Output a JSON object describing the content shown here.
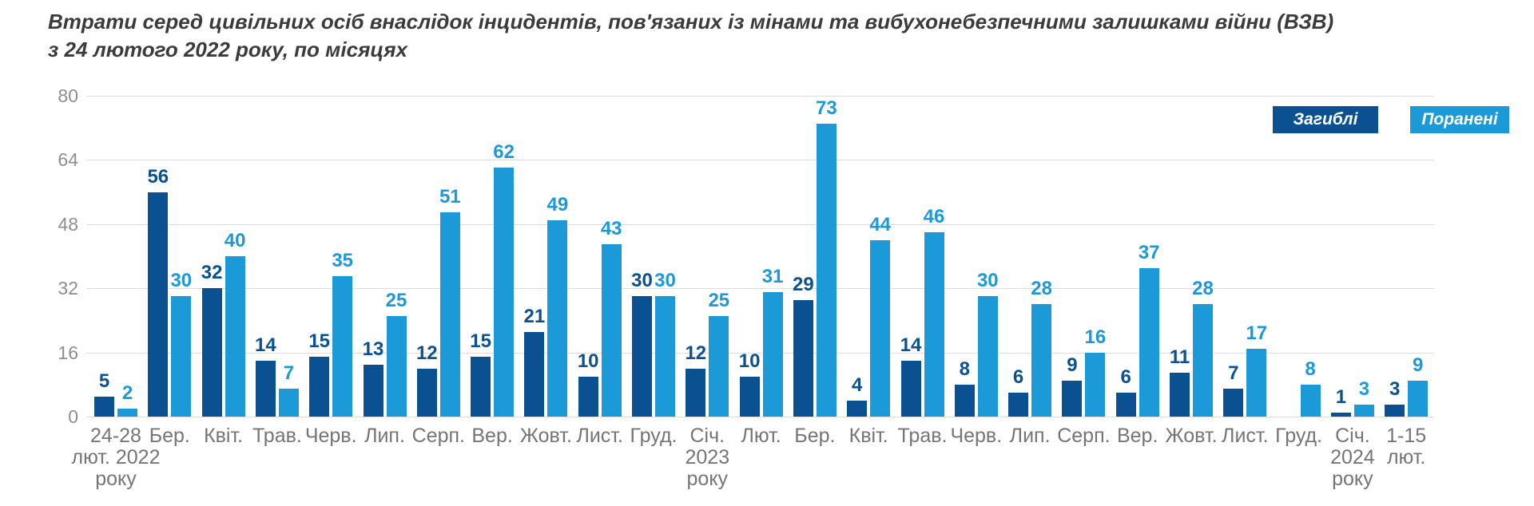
{
  "title": {
    "line1": "Втрати серед цивільних осіб внаслідок інцидентів, пов'язаних із мінами та вибухонебезпечними залишками війни (ВЗВ)",
    "line2": "з 24 лютого 2022 року, по місяцях"
  },
  "legend": {
    "killed": "Загиблі",
    "wounded": "Поранені"
  },
  "colors": {
    "killed": "#0b5191",
    "wounded": "#1b9ad7",
    "grid": "#dcdcdc",
    "y_axis_text": "#8e8e8e",
    "x_axis_text": "#757575",
    "title_text": "#3b3b3b"
  },
  "chart_data": {
    "type": "bar",
    "categories": [
      "24-28\nлют. 2022\nроку",
      "Бер.",
      "Квіт.",
      "Трав.",
      "Черв.",
      "Лип.",
      "Серп.",
      "Вер.",
      "Жовт.",
      "Лист.",
      "Груд.",
      "Січ.\n2023\nроку",
      "Лют.",
      "Бер.",
      "Квіт.",
      "Трав.",
      "Черв.",
      "Лип.",
      "Серп.",
      "Вер.",
      "Жовт.",
      "Лист.",
      "Груд.",
      "Січ.\n2024\nроку",
      "1-15\nлют."
    ],
    "series": [
      {
        "name": "Загиблі",
        "color": "#0b5191",
        "values": [
          5,
          56,
          32,
          14,
          15,
          13,
          12,
          15,
          21,
          10,
          30,
          12,
          10,
          29,
          4,
          14,
          8,
          6,
          9,
          6,
          11,
          7,
          0,
          1,
          3
        ]
      },
      {
        "name": "Поранені",
        "color": "#1b9ad7",
        "values": [
          2,
          30,
          40,
          7,
          35,
          25,
          51,
          62,
          49,
          43,
          30,
          25,
          31,
          73,
          44,
          46,
          30,
          28,
          16,
          37,
          28,
          17,
          8,
          3,
          9
        ]
      }
    ],
    "ylim": [
      0,
      80
    ],
    "yticks": [
      0,
      16,
      32,
      48,
      64,
      80
    ],
    "grid": true,
    "legend_position": "top-right",
    "value_labels": true,
    "bars_with_zero_hidden": true
  }
}
